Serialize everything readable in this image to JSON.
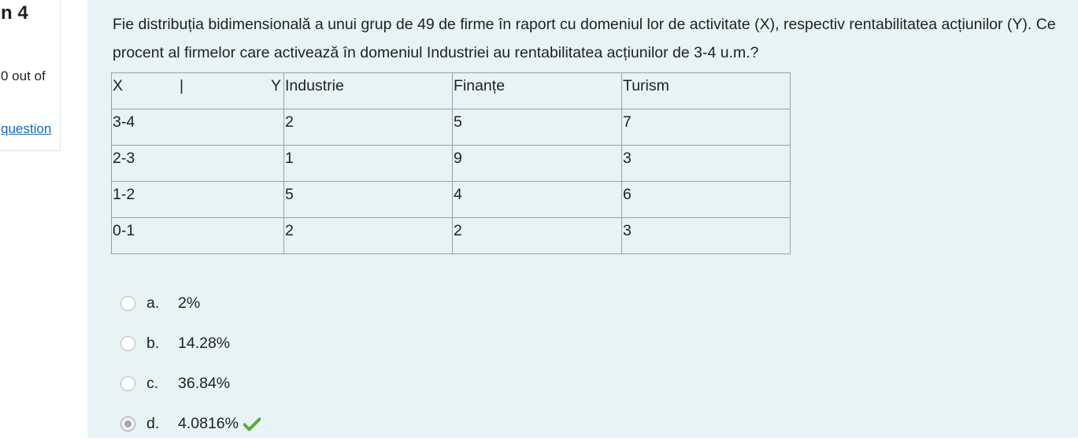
{
  "info": {
    "question_number": "n 4",
    "grade": "0 out of",
    "flag_link": "question"
  },
  "question": {
    "text": "Fie distribuția bidimensională a unui grup de 49 de firme în raport cu domeniul lor de activitate (X), respectiv rentabilitatea acțiunilor (Y). Ce procent al firmelor care activează în domeniul Industriei au rentabilitatea acțiunilor de 3-4 u.m.?"
  },
  "table": {
    "header": {
      "x": "X",
      "sep": "|",
      "y": "Y",
      "columns": [
        "Industrie",
        "Finanțe",
        "Turism"
      ]
    },
    "rows": [
      {
        "label": "3-4",
        "values": [
          "2",
          "5",
          "7"
        ]
      },
      {
        "label": "2-3",
        "values": [
          "1",
          "9",
          "3"
        ]
      },
      {
        "label": "1-2",
        "values": [
          "5",
          "4",
          "6"
        ]
      },
      {
        "label": "0-1",
        "values": [
          "2",
          "2",
          "3"
        ]
      }
    ]
  },
  "answers": [
    {
      "letter": "a.",
      "text": "2%",
      "selected": false
    },
    {
      "letter": "b.",
      "text": "14.28%",
      "selected": false
    },
    {
      "letter": "c.",
      "text": "36.84%",
      "selected": false
    },
    {
      "letter": "d.",
      "text": "4.0816%",
      "selected": true
    }
  ],
  "colors": {
    "content_bg": "#e7f3f5",
    "link": "#0f6cbf",
    "correct": "#5aa839"
  },
  "icons": {
    "correct": "check-icon"
  }
}
